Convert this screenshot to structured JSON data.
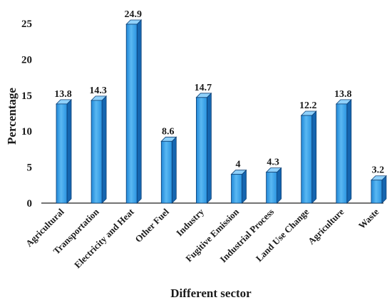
{
  "chart_data": {
    "type": "bar",
    "categories": [
      "Agricultural",
      "Transportation",
      "Electricity and Heat",
      "Other Fuel",
      "Industry",
      "Fugitive Emission",
      "Industrial Process",
      "Land Use Change",
      "Agriculture",
      "Waste"
    ],
    "values": [
      13.8,
      14.3,
      24.9,
      8.6,
      14.7,
      4,
      4.3,
      12.2,
      13.8,
      3.2
    ],
    "value_labels": [
      "13.8",
      "14.3",
      "24.9",
      "8.6",
      "14.7",
      "4",
      "4.3",
      "12.2",
      "13.8",
      "3.2"
    ],
    "xlabel": "Different sector",
    "ylabel": "Percentage",
    "ylim": [
      0,
      25
    ],
    "yticks": [
      0,
      5,
      10,
      15,
      20,
      25
    ],
    "grid": false,
    "legend": "none",
    "bar_colors": {
      "front": "#2f9be6",
      "front_light": "#6cc3f7",
      "side": "#1566b0",
      "top": "#8fd1fb",
      "edge": "#0d3f73"
    }
  }
}
